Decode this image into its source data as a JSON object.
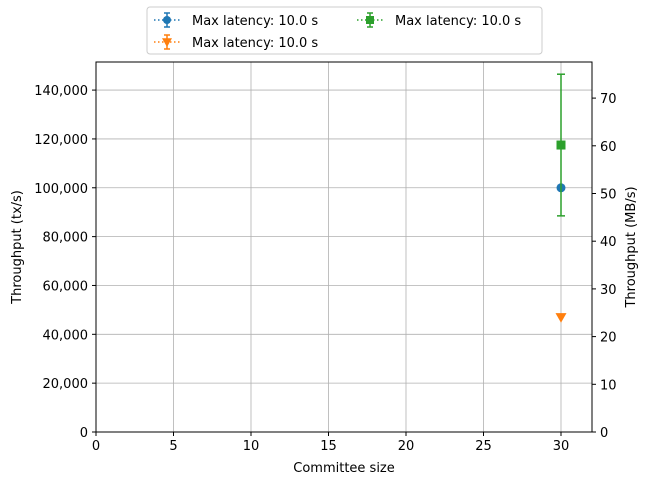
{
  "chart_data": {
    "type": "scatter",
    "xlabel": "Committee size",
    "ylabel": "Throughput (tx/s)",
    "y2label": "Throughput (MB/s)",
    "xlim": [
      0,
      32
    ],
    "ylim": [
      0,
      151500
    ],
    "y2lim": [
      0,
      77.568
    ],
    "xticks": [
      "0",
      "5",
      "10",
      "15",
      "20",
      "25",
      "30"
    ],
    "yticks": [
      "0",
      "20,000",
      "40,000",
      "60,000",
      "80,000",
      "100,000",
      "120,000",
      "140,000"
    ],
    "y2ticks": [
      "0",
      "10",
      "20",
      "30",
      "40",
      "50",
      "60",
      "70"
    ],
    "grid": true,
    "legend_position": "top-center",
    "series": [
      {
        "name": "Max latency: 10.0 s",
        "marker": "circle",
        "color": "#1f77b4",
        "x": [
          30
        ],
        "y": [
          100000
        ],
        "err": [
          0
        ]
      },
      {
        "name": "Max latency: 10.0 s",
        "marker": "triangle-down",
        "color": "#ff7f0e",
        "x": [
          30
        ],
        "y": [
          47000
        ],
        "err": [
          0
        ]
      },
      {
        "name": "Max latency: 10.0 s",
        "marker": "square",
        "color": "#2ca02c",
        "x": [
          30
        ],
        "y": [
          117500
        ],
        "err": [
          29000
        ]
      }
    ]
  }
}
